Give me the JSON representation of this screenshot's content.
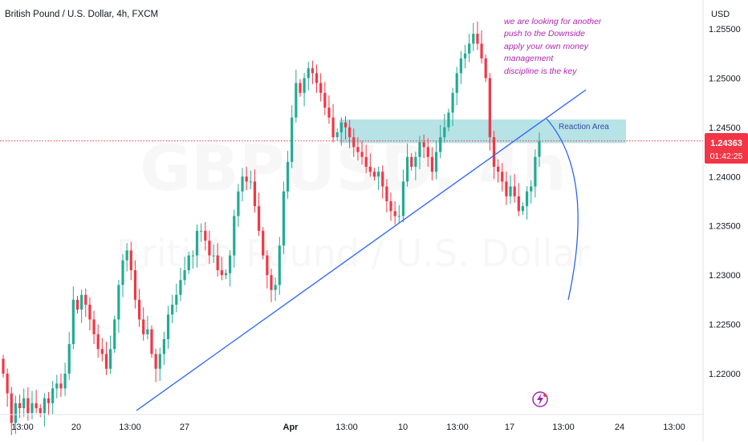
{
  "header": {
    "symbol_title": "British Pound / U.S. Dollar, 4h, FXCM"
  },
  "watermark": {
    "ticker": "GBPUSD, 4h",
    "name": "British Pound / U.S. Dollar"
  },
  "annotation": {
    "lines": [
      "we are looking for another",
      "push to the Downside",
      "apply your own money",
      "management",
      "discipline is the key"
    ],
    "color": "#b124b5"
  },
  "reaction_area": {
    "label": "Reaction Area",
    "price_low": 1.2434,
    "price_high": 1.2458,
    "color": "#9fd8dd"
  },
  "current_price": {
    "price": "1.24363",
    "countdown": "01:42:25",
    "value": 1.24363,
    "color": "#f23645"
  },
  "colors": {
    "up": "#22ab94",
    "down": "#f23645",
    "trendline": "#2962ff",
    "axis_text": "#131722"
  },
  "chart_data": {
    "type": "candlestick",
    "symbol": "GBPUSD",
    "timeframe": "4h",
    "currency": "USD",
    "ylim": [
      1.2165,
      1.2565
    ],
    "y_ticks": [
      1.22,
      1.225,
      1.23,
      1.235,
      1.24,
      1.245,
      1.25,
      1.255
    ],
    "y_tick_labels": [
      "1.22000",
      "1.22500",
      "1.23000",
      "1.23500",
      "1.24000",
      "1.24500",
      "1.25000",
      "1.25500"
    ],
    "x_tick_labels": [
      "13:00",
      "20",
      "13:00",
      "27",
      "Apr",
      "13:00",
      "10",
      "13:00",
      "17",
      "13:00",
      "24",
      "13:00"
    ],
    "closes": [
      1.22,
      1.218,
      1.215,
      1.217,
      1.2165,
      1.2175,
      1.216,
      1.217,
      1.2165,
      1.216,
      1.2175,
      1.217,
      1.2185,
      1.219,
      1.2185,
      1.22,
      1.223,
      1.2275,
      1.2265,
      1.228,
      1.227,
      1.2255,
      1.224,
      1.2225,
      1.222,
      1.2205,
      1.2225,
      1.2255,
      1.229,
      1.2315,
      1.2325,
      1.2305,
      1.2275,
      1.2255,
      1.224,
      1.2245,
      1.222,
      1.2205,
      1.222,
      1.2235,
      1.226,
      1.227,
      1.228,
      1.2295,
      1.2305,
      1.232,
      1.232,
      1.2345,
      1.2345,
      1.2335,
      1.232,
      1.232,
      1.2305,
      1.23,
      1.2302,
      1.232,
      1.236,
      1.2385,
      1.24,
      1.2395,
      1.2395,
      1.237,
      1.2345,
      1.232,
      1.23,
      1.2285,
      1.229,
      1.233,
      1.2385,
      1.2415,
      1.246,
      1.2495,
      1.2485,
      1.25,
      1.251,
      1.2505,
      1.2495,
      1.2485,
      1.247,
      1.246,
      1.244,
      1.2445,
      1.2455,
      1.245,
      1.244,
      1.243,
      1.2425,
      1.242,
      1.241,
      1.2405,
      1.24,
      1.2405,
      1.239,
      1.2375,
      1.2365,
      1.236,
      1.236,
      1.2395,
      1.242,
      1.241,
      1.242,
      1.2435,
      1.243,
      1.242,
      1.2405,
      1.2425,
      1.244,
      1.245,
      1.2465,
      1.2485,
      1.2505,
      1.252,
      1.2525,
      1.2535,
      1.2545,
      1.2535,
      1.252,
      1.25,
      1.244,
      1.241,
      1.2405,
      1.2395,
      1.238,
      1.239,
      1.238,
      1.2365,
      1.237,
      1.2385,
      1.239,
      1.242,
      1.2436
    ]
  }
}
